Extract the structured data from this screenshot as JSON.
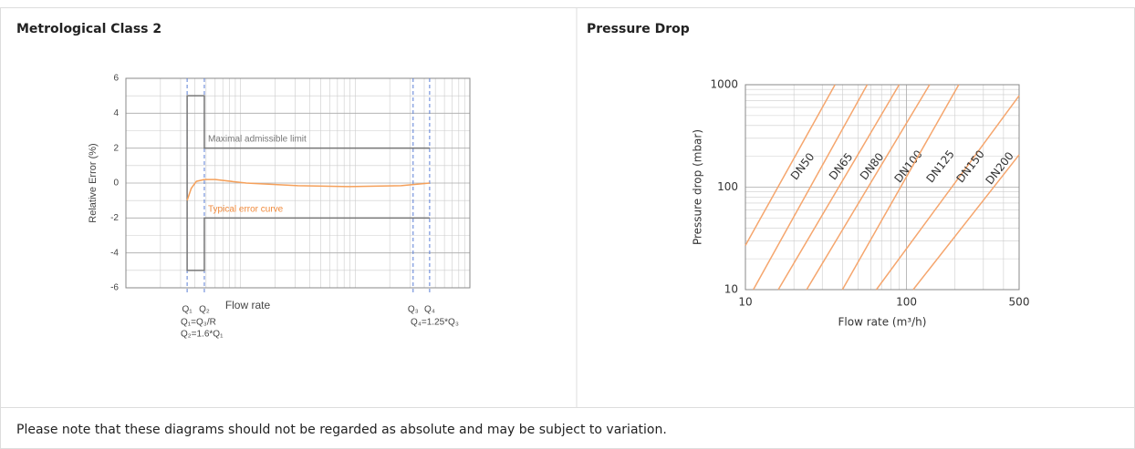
{
  "panels": [
    {
      "title": "Metrological Class 2"
    },
    {
      "title": "Pressure Drop"
    }
  ],
  "note": "Please note that these diagrams should not be regarded as absolute and may be subject to variation.",
  "chart_data": [
    {
      "type": "line",
      "ylabel": "Relative Error (%)",
      "xlabel": "Flow rate",
      "xlim": [
        0,
        100
      ],
      "ylim": [
        -6,
        6
      ],
      "yticks": [
        -6,
        -4,
        -2,
        0,
        2,
        4,
        6
      ],
      "grid": true,
      "series": [
        {
          "color": "#777777",
          "x": [
            88.3,
            22.8,
            22.8,
            17.8,
            17.8,
            22.8,
            22.8,
            88.3
          ],
          "values": [
            2,
            2,
            5,
            5,
            -5,
            -5,
            -2,
            -2
          ]
        },
        {
          "color": "#f5a05a",
          "x": [
            17.8,
            19,
            20.5,
            22.8,
            26,
            35,
            50,
            65,
            80,
            88.3
          ],
          "values": [
            -1,
            -0.3,
            0.1,
            0.2,
            0.2,
            0,
            -0.15,
            -0.2,
            -0.15,
            0
          ]
        }
      ],
      "markers": [
        {
          "x": 17.8,
          "label": "Q₁",
          "formula": "Q₁=Q₃/R"
        },
        {
          "x": 22.8,
          "label": "Q₂",
          "formula": "Q₂=1.6*Q₁"
        },
        {
          "x": 83.5,
          "label": "Q₃"
        },
        {
          "x": 88.3,
          "label": "Q₄",
          "formula": "Q₄=1.25*Q₃"
        }
      ],
      "annotations": [
        "Maximal admissible limit",
        "Typical error curve"
      ]
    },
    {
      "type": "line",
      "ylabel": "Pressure drop (mbar)",
      "xlabel": "Flow rate (m³/h)",
      "log_x": true,
      "log_y": true,
      "xlim": [
        10,
        500
      ],
      "xticks": [
        10,
        100,
        500
      ],
      "ylim": [
        10,
        1000
      ],
      "yticks": [
        10,
        100,
        1000
      ],
      "grid": true,
      "series": [
        {
          "name": "DN50",
          "color": "#f5a66e",
          "x": [
            10,
            36
          ],
          "values": [
            27,
            1000
          ]
        },
        {
          "name": "DN65",
          "color": "#f5a66e",
          "x": [
            11.2,
            57
          ],
          "values": [
            10,
            1000
          ]
        },
        {
          "name": "DN80",
          "color": "#f5a66e",
          "x": [
            16,
            90
          ],
          "values": [
            10,
            1000
          ]
        },
        {
          "name": "DN100",
          "color": "#f5a66e",
          "x": [
            24,
            139
          ],
          "values": [
            10,
            1000
          ]
        },
        {
          "name": "DN125",
          "color": "#f5a66e",
          "x": [
            40,
            211
          ],
          "values": [
            10,
            1000
          ]
        },
        {
          "name": "DN150",
          "color": "#f5a66e",
          "x": [
            65,
            500
          ],
          "values": [
            10,
            782
          ]
        },
        {
          "name": "DN200",
          "color": "#f5a66e",
          "x": [
            110,
            500
          ],
          "values": [
            10,
            207
          ]
        }
      ]
    }
  ]
}
